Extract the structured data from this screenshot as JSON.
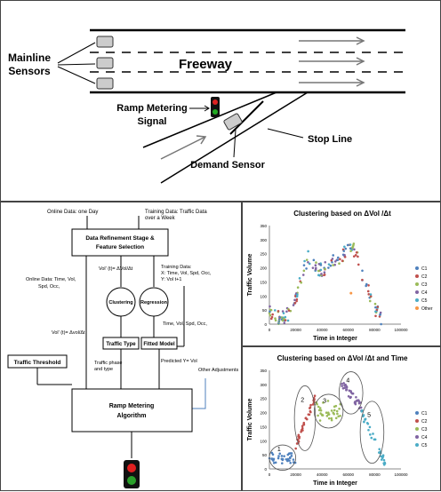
{
  "freeway": {
    "mainline_sensors_line1": "Mainline",
    "mainline_sensors_line2": "Sensors",
    "freeway_label": "Freeway",
    "ramp_signal_line1": "Ramp Metering",
    "ramp_signal_line2": "Signal",
    "stop_line": "Stop Line",
    "demand_sensor": "Demand Sensor"
  },
  "flow": {
    "online_day": "Online Data: one Day",
    "training_week_1": "Training Data: Traffic Data",
    "training_week_2": "over a Week",
    "refine_1": "Data Refinement Stage &",
    "refine_2": "Feature Selection",
    "vol_prime": "Vol' (t)= ΔVol/Δt",
    "online_feat_1": "Online Data: Time, Vol,",
    "online_feat_2": "Spd, Occ,",
    "train_feat_1": "Training Data:",
    "train_feat_2": "X: Time, Vol, Spd, Occ,",
    "train_feat_3": "Y: Vol t+1",
    "clustering": "Clustering",
    "regression": "Regression",
    "time_vol": "Time, Vol, Spd, Occ,",
    "vol_prime_2": "Vol' (t)= Δvol/Δt",
    "traffic_type": "Traffic Type",
    "fitted_model": "Fitted Model",
    "threshold": "Traffic Threshold",
    "phase_1": "Traffic phase",
    "phase_2": "and type",
    "predicted": "Predicted Y= Vol",
    "other_adj": "Other Adjustments",
    "algo_1": "Ramp Metering",
    "algo_2": "Algorithm"
  },
  "chart_data": [
    {
      "type": "scatter",
      "title": "Clustering based on ΔVol /Δt",
      "xlabel": "Time in Integer",
      "ylabel": "Traffic Volume",
      "xlim": [
        0,
        100000
      ],
      "ylim": [
        0,
        350
      ],
      "xticks": [
        0,
        20000,
        40000,
        60000,
        80000,
        100000
      ],
      "yticks": [
        0,
        50,
        100,
        150,
        200,
        250,
        300,
        350
      ],
      "legend": [
        "C1",
        "C2",
        "C3",
        "C4",
        "C5",
        "Other"
      ],
      "legend_position": "right",
      "profile_x": [
        0,
        5000,
        10000,
        15000,
        20000,
        25000,
        30000,
        35000,
        40000,
        45000,
        50000,
        55000,
        60000,
        62000,
        66000,
        70000,
        75000,
        80000,
        85000
      ],
      "profile_y": [
        40,
        25,
        25,
        40,
        90,
        190,
        240,
        200,
        190,
        210,
        230,
        240,
        270,
        280,
        250,
        180,
        120,
        60,
        20
      ]
    },
    {
      "type": "scatter",
      "title": "Clustering based on ΔVol /Δt and Time",
      "xlabel": "Time in Integer",
      "ylabel": "Traffic Volume",
      "xlim": [
        0,
        100000
      ],
      "ylim": [
        0,
        350
      ],
      "xticks": [
        0,
        20000,
        40000,
        60000,
        80000,
        100000
      ],
      "yticks": [
        0,
        50,
        100,
        150,
        200,
        250,
        300,
        350
      ],
      "legend": [
        "C1",
        "C2",
        "C3",
        "C4",
        "C5"
      ],
      "legend_position": "right",
      "cluster_labels": [
        "1",
        "2",
        "3",
        "4",
        "5"
      ],
      "clusters": [
        {
          "name": "C1",
          "x_range": [
            0,
            20000
          ],
          "y_center": 40
        },
        {
          "name": "C2",
          "x_range": [
            20000,
            35000
          ],
          "y_center": 190
        },
        {
          "name": "C3",
          "x_range": [
            35000,
            55000
          ],
          "y_center": 200
        },
        {
          "name": "C4",
          "x_range": [
            55000,
            70000
          ],
          "y_center": 270
        },
        {
          "name": "C5",
          "x_range": [
            70000,
            88000
          ],
          "y_center": 110
        }
      ]
    }
  ],
  "colors": {
    "c1": "#4f81bd",
    "c2": "#c0504d",
    "c3": "#9bbb59",
    "c4": "#8064a2",
    "c5": "#4bacc6",
    "other": "#f79646"
  }
}
